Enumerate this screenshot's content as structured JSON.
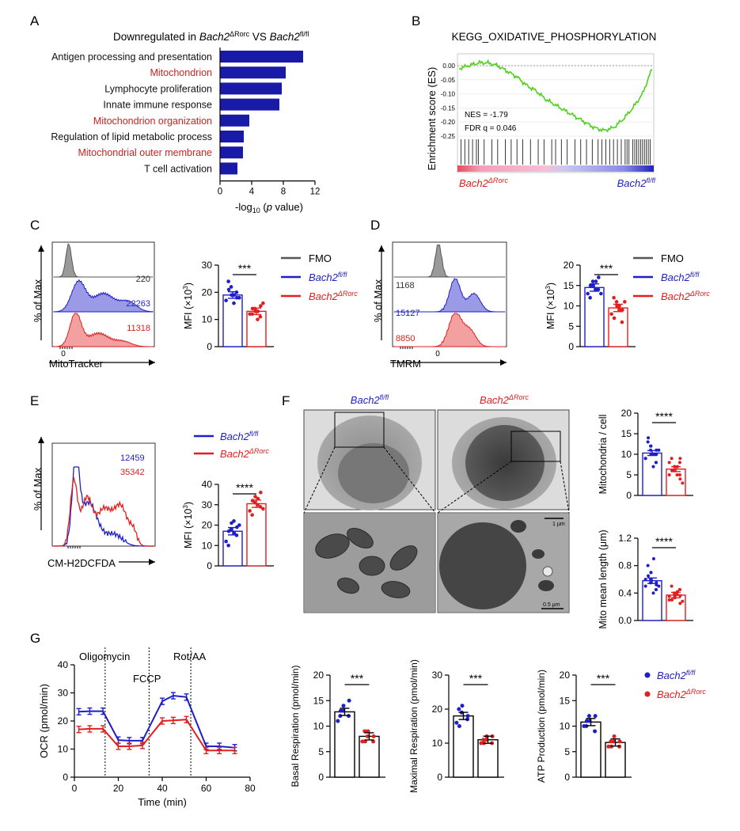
{
  "colors": {
    "blue": "#1f1fc8",
    "red": "#e02020",
    "navy": "#1a1aa8",
    "gray": "#555555",
    "green": "#4fd21e",
    "darkred": "#cc2222"
  },
  "panelA": {
    "letter": "A",
    "title_pre": "Downregulated in ",
    "title_g1": "Bach2",
    "title_sup1": "ΔRorc",
    "title_mid": " VS ",
    "title_g2": "Bach2",
    "title_sup2": "fl/fl",
    "xlabel_pre": "-log",
    "xlabel_sub": "10",
    "xlabel_mid": " (",
    "xlabel_p": "p",
    "xlabel_post": " value)",
    "chart_data": {
      "type": "bar",
      "orientation": "horizontal",
      "categories": [
        "Antigen processing and presentation",
        "Mitochondrion",
        "Lymphocyte proliferation",
        "Innate immune response",
        "Mitochondrion organization",
        "Regulation of lipid metabolic process",
        "Mitochondrial outer membrane",
        "T cell activation"
      ],
      "highlight": [
        false,
        true,
        false,
        false,
        true,
        false,
        true,
        false
      ],
      "values": [
        10.5,
        8.3,
        7.8,
        7.5,
        3.7,
        3.0,
        2.9,
        2.2
      ],
      "xlim": [
        0,
        12
      ],
      "xticks": [
        "0",
        "4",
        "8",
        "12"
      ]
    }
  },
  "panelB": {
    "letter": "B",
    "title": "KEGG_OXIDATIVE_PHOSPHORYLATION",
    "ylabel": "Enrichment score (ES)",
    "yticks": [
      "0.00",
      "-0.05",
      "-0.10",
      "-0.15",
      "-0.20",
      "-0.25"
    ],
    "nes": "NES = -1.79",
    "fdr": "FDR q = 0.046",
    "left_g": "Bach2",
    "left_sup": "ΔRorc",
    "right_g": "Bach2",
    "right_sup": "fl/fl",
    "chart_data": {
      "type": "line",
      "ylim": [
        -0.25,
        0.0
      ],
      "x": [
        0,
        0.05,
        0.1,
        0.15,
        0.2,
        0.25,
        0.3,
        0.35,
        0.4,
        0.45,
        0.5,
        0.55,
        0.6,
        0.65,
        0.7,
        0.75,
        0.8,
        0.85,
        0.9,
        0.95,
        1.0
      ],
      "y": [
        -0.01,
        0.0,
        0.01,
        0.01,
        0.0,
        -0.02,
        -0.04,
        -0.07,
        -0.09,
        -0.12,
        -0.14,
        -0.16,
        -0.18,
        -0.2,
        -0.22,
        -0.23,
        -0.22,
        -0.19,
        -0.15,
        -0.1,
        -0.01
      ]
    }
  },
  "panelC": {
    "letter": "C",
    "ylabel": "% of Max",
    "xlabel": "MitoTracker",
    "tick0": "0",
    "values": [
      "220",
      "22263",
      "11318"
    ],
    "sig": "***",
    "legend": {
      "fmo": "FMO",
      "g1": "Bach2",
      "s1": "fl/fl",
      "g2": "Bach2",
      "s2": "ΔRorc"
    },
    "mfi_label": "MFI (×10",
    "mfi_sup": "3",
    "mfi_close": ")",
    "chart_data": {
      "type": "bar",
      "categories": [
        "Bach2 fl/fl",
        "Bach2 ΔRorc"
      ],
      "values": [
        19,
        13
      ],
      "ylim": [
        0,
        30
      ],
      "yticks": [
        "0",
        "10",
        "20",
        "30"
      ],
      "points": [
        [
          17,
          22,
          19,
          20,
          18,
          24,
          21,
          16,
          19,
          18
        ],
        [
          12,
          14,
          13,
          11,
          15,
          12,
          14,
          10,
          13,
          16
        ]
      ]
    }
  },
  "panelD": {
    "letter": "D",
    "ylabel": "% of Max",
    "xlabel": "TMRM",
    "tick0": "0",
    "values": [
      "1168",
      "15127",
      "8850"
    ],
    "sig": "***",
    "legend": {
      "fmo": "FMO",
      "g1": "Bach2",
      "s1": "fl/fl",
      "g2": "Bach2",
      "s2": "ΔRorc"
    },
    "mfi_label": "MFI (×10",
    "mfi_sup": "3",
    "mfi_close": ")",
    "chart_data": {
      "type": "bar",
      "categories": [
        "Bach2 fl/fl",
        "Bach2 ΔRorc"
      ],
      "values": [
        14.5,
        9.5
      ],
      "ylim": [
        0,
        20
      ],
      "yticks": [
        "0",
        "5",
        "10",
        "15",
        "20"
      ],
      "points": [
        [
          13,
          16,
          15,
          14,
          17,
          12,
          15,
          14,
          16,
          13
        ],
        [
          8,
          11,
          10,
          6,
          9,
          12,
          7,
          10,
          9,
          11
        ]
      ]
    }
  },
  "panelE": {
    "letter": "E",
    "ylabel": "% of Max",
    "xlabel": "CM-H2DCFDA",
    "values": [
      "12459",
      "35342"
    ],
    "sig": "****",
    "legend": {
      "g1": "Bach2",
      "s1": "fl/fl",
      "g2": "Bach2",
      "s2": "ΔRorc"
    },
    "mfi_label": "MFI (×10",
    "mfi_sup": "3",
    "mfi_close": ")",
    "chart_data": {
      "type": "bar",
      "categories": [
        "Bach2 fl/fl",
        "Bach2 ΔRorc"
      ],
      "values": [
        17,
        30.5
      ],
      "ylim": [
        0,
        40
      ],
      "yticks": [
        "0",
        "10",
        "20",
        "30",
        "40"
      ],
      "points": [
        [
          12,
          18,
          21,
          15,
          19,
          10,
          17,
          22,
          16,
          20
        ],
        [
          27,
          31,
          34,
          29,
          36,
          25,
          32,
          30,
          33,
          28
        ]
      ]
    }
  },
  "panelF": {
    "letter": "F",
    "col1_g": "Bach2",
    "col1_s": "fl/fl",
    "col2_g": "Bach2",
    "col2_s": "ΔRorc",
    "scale1": "1 μm",
    "scale2": "0.5 μm",
    "chart_top": {
      "type": "bar",
      "ylabel": "Mitochondria / cell",
      "sig": "****",
      "categories": [
        "Bach2 fl/fl",
        "Bach2 ΔRorc"
      ],
      "values": [
        10.3,
        6.4
      ],
      "ylim": [
        0,
        20
      ],
      "yticks": [
        "0",
        "5",
        "10",
        "15",
        "20"
      ],
      "points": [
        [
          9,
          11,
          12,
          8,
          10,
          13,
          14,
          7,
          10,
          11,
          9,
          12,
          10,
          8,
          11
        ],
        [
          5,
          7,
          6,
          8,
          4,
          9,
          6,
          5,
          7,
          3,
          8,
          6,
          7,
          5,
          9
        ]
      ]
    },
    "chart_bottom": {
      "type": "bar",
      "ylabel": "Mito mean length (μm)",
      "sig": "****",
      "categories": [
        "Bach2 fl/fl",
        "Bach2 ΔRorc"
      ],
      "values": [
        0.58,
        0.37
      ],
      "ylim": [
        0,
        1.2
      ],
      "yticks": [
        "0.0",
        "0.4",
        "0.8",
        "1.2"
      ],
      "points": [
        [
          0.5,
          0.6,
          0.7,
          0.45,
          0.55,
          0.8,
          0.65,
          0.4,
          0.9,
          0.5,
          0.6,
          0.55,
          0.7,
          0.45,
          0.52
        ],
        [
          0.3,
          0.4,
          0.35,
          0.45,
          0.25,
          0.5,
          0.3,
          0.38,
          0.42,
          0.28,
          0.35,
          0.4,
          0.33,
          0.45,
          0.36
        ]
      ]
    }
  },
  "panelG": {
    "letter": "G",
    "annot": [
      "Oligomycin",
      "FCCP",
      "Rot/AA"
    ],
    "ocr": {
      "type": "line",
      "ylabel": "OCR (pmol/min)",
      "xlabel": "Time (min)",
      "ylim": [
        0,
        40
      ],
      "xlim": [
        0,
        80
      ],
      "yticks": [
        "0",
        "10",
        "20",
        "30",
        "40"
      ],
      "xticks": [
        "0",
        "20",
        "40",
        "60",
        "80"
      ],
      "x": [
        2,
        7,
        13,
        20,
        25,
        31,
        40,
        45,
        51,
        60,
        66,
        73
      ],
      "series": [
        {
          "name": "Bach2 fl/fl",
          "values": [
            23.3,
            23.5,
            23.5,
            13.2,
            13.0,
            13.0,
            27.0,
            29.0,
            28.5,
            11.0,
            11.0,
            10.5
          ]
        },
        {
          "name": "Bach2 ΔRorc",
          "values": [
            17.0,
            17.2,
            17.2,
            11.0,
            11.0,
            11.3,
            20.0,
            20.2,
            20.5,
            9.5,
            9.5,
            9.5
          ]
        }
      ],
      "inject_x": [
        14,
        34,
        53
      ]
    },
    "bars": [
      {
        "ylabel": "Basal Respiration (pmol/min)",
        "sig": "***",
        "values": [
          12.8,
          8.0
        ],
        "ylim": [
          0,
          20
        ],
        "yticks": [
          "0",
          "5",
          "10",
          "15",
          "20"
        ],
        "points": [
          [
            11,
            13,
            14,
            12,
            15,
            12,
            13
          ],
          [
            7,
            8,
            9,
            7,
            8,
            9,
            7
          ]
        ]
      },
      {
        "ylabel": "Maximal Respiration (pmol/min)",
        "sig": "***",
        "values": [
          18.0,
          11.0
        ],
        "ylim": [
          0,
          30
        ],
        "yticks": [
          "0",
          "10",
          "20",
          "30"
        ],
        "points": [
          [
            16,
            19,
            21,
            17,
            18,
            20,
            15
          ],
          [
            10,
            11,
            12,
            10,
            12,
            11,
            10
          ]
        ]
      },
      {
        "ylabel": "ATP Production (pmol/min)",
        "sig": "***",
        "values": [
          10.8,
          6.8
        ],
        "ylim": [
          0,
          20
        ],
        "yticks": [
          "0",
          "5",
          "10",
          "15",
          "20"
        ],
        "points": [
          [
            10,
            12,
            11,
            9,
            12,
            10,
            11
          ],
          [
            6,
            7,
            8,
            6,
            7,
            7,
            6
          ]
        ]
      }
    ],
    "legend": {
      "g1": "Bach2",
      "s1": "fl/fl",
      "g2": "Bach2",
      "s2": "ΔRorc"
    }
  }
}
